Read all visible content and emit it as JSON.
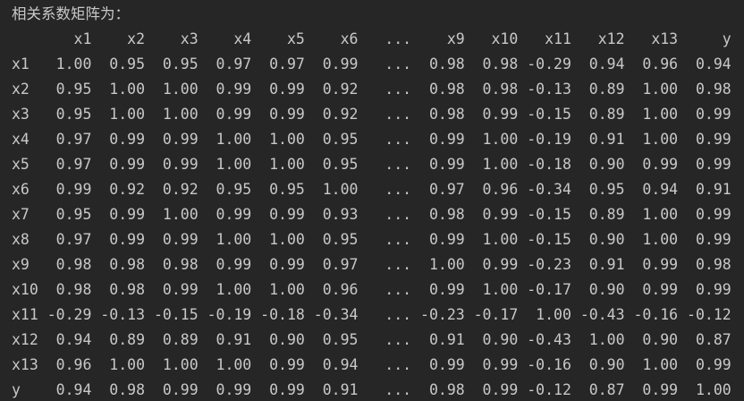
{
  "terminal": {
    "title": "相关系数矩阵为：",
    "colors": {
      "background": "#262626",
      "text": "#c8c8c8"
    },
    "matrix": {
      "columns": [
        "x1",
        "x2",
        "x3",
        "x4",
        "x5",
        "x6",
        "...",
        "x9",
        "x10",
        "x11",
        "x12",
        "x13",
        "y"
      ],
      "rows": [
        {
          "label": "x1",
          "values": [
            "1.00",
            "0.95",
            "0.95",
            "0.97",
            "0.97",
            "0.99",
            "...",
            "0.98",
            "0.98",
            "-0.29",
            "0.94",
            "0.96",
            "0.94"
          ]
        },
        {
          "label": "x2",
          "values": [
            "0.95",
            "1.00",
            "1.00",
            "0.99",
            "0.99",
            "0.92",
            "...",
            "0.98",
            "0.98",
            "-0.13",
            "0.89",
            "1.00",
            "0.98"
          ]
        },
        {
          "label": "x3",
          "values": [
            "0.95",
            "1.00",
            "1.00",
            "0.99",
            "0.99",
            "0.92",
            "...",
            "0.98",
            "0.99",
            "-0.15",
            "0.89",
            "1.00",
            "0.99"
          ]
        },
        {
          "label": "x4",
          "values": [
            "0.97",
            "0.99",
            "0.99",
            "1.00",
            "1.00",
            "0.95",
            "...",
            "0.99",
            "1.00",
            "-0.19",
            "0.91",
            "1.00",
            "0.99"
          ]
        },
        {
          "label": "x5",
          "values": [
            "0.97",
            "0.99",
            "0.99",
            "1.00",
            "1.00",
            "0.95",
            "...",
            "0.99",
            "1.00",
            "-0.18",
            "0.90",
            "0.99",
            "0.99"
          ]
        },
        {
          "label": "x6",
          "values": [
            "0.99",
            "0.92",
            "0.92",
            "0.95",
            "0.95",
            "1.00",
            "...",
            "0.97",
            "0.96",
            "-0.34",
            "0.95",
            "0.94",
            "0.91"
          ]
        },
        {
          "label": "x7",
          "values": [
            "0.95",
            "0.99",
            "1.00",
            "0.99",
            "0.99",
            "0.93",
            "...",
            "0.98",
            "0.99",
            "-0.15",
            "0.89",
            "1.00",
            "0.99"
          ]
        },
        {
          "label": "x8",
          "values": [
            "0.97",
            "0.99",
            "0.99",
            "1.00",
            "1.00",
            "0.95",
            "...",
            "0.99",
            "1.00",
            "-0.15",
            "0.90",
            "1.00",
            "0.99"
          ]
        },
        {
          "label": "x9",
          "values": [
            "0.98",
            "0.98",
            "0.98",
            "0.99",
            "0.99",
            "0.97",
            "...",
            "1.00",
            "0.99",
            "-0.23",
            "0.91",
            "0.99",
            "0.98"
          ]
        },
        {
          "label": "x10",
          "values": [
            "0.98",
            "0.98",
            "0.99",
            "1.00",
            "1.00",
            "0.96",
            "...",
            "0.99",
            "1.00",
            "-0.17",
            "0.90",
            "0.99",
            "0.99"
          ]
        },
        {
          "label": "x11",
          "values": [
            "-0.29",
            "-0.13",
            "-0.15",
            "-0.19",
            "-0.18",
            "-0.34",
            "...",
            "-0.23",
            "-0.17",
            "1.00",
            "-0.43",
            "-0.16",
            "-0.12"
          ]
        },
        {
          "label": "x12",
          "values": [
            "0.94",
            "0.89",
            "0.89",
            "0.91",
            "0.90",
            "0.95",
            "...",
            "0.91",
            "0.90",
            "-0.43",
            "1.00",
            "0.90",
            "0.87"
          ]
        },
        {
          "label": "x13",
          "values": [
            "0.96",
            "1.00",
            "1.00",
            "1.00",
            "0.99",
            "0.94",
            "...",
            "0.99",
            "0.99",
            "-0.16",
            "0.90",
            "1.00",
            "0.99"
          ]
        },
        {
          "label": "y",
          "values": [
            "0.94",
            "0.98",
            "0.99",
            "0.99",
            "0.99",
            "0.91",
            "...",
            "0.98",
            "0.99",
            "-0.12",
            "0.87",
            "0.99",
            "1.00"
          ]
        }
      ]
    }
  },
  "chart_data": {
    "type": "table",
    "title": "相关系数矩阵为：",
    "columns": [
      "x1",
      "x2",
      "x3",
      "x4",
      "x5",
      "x6",
      "...",
      "x9",
      "x10",
      "x11",
      "x12",
      "x13",
      "y"
    ],
    "row_labels": [
      "x1",
      "x2",
      "x3",
      "x4",
      "x5",
      "x6",
      "x7",
      "x8",
      "x9",
      "x10",
      "x11",
      "x12",
      "x13",
      "y"
    ]
  }
}
